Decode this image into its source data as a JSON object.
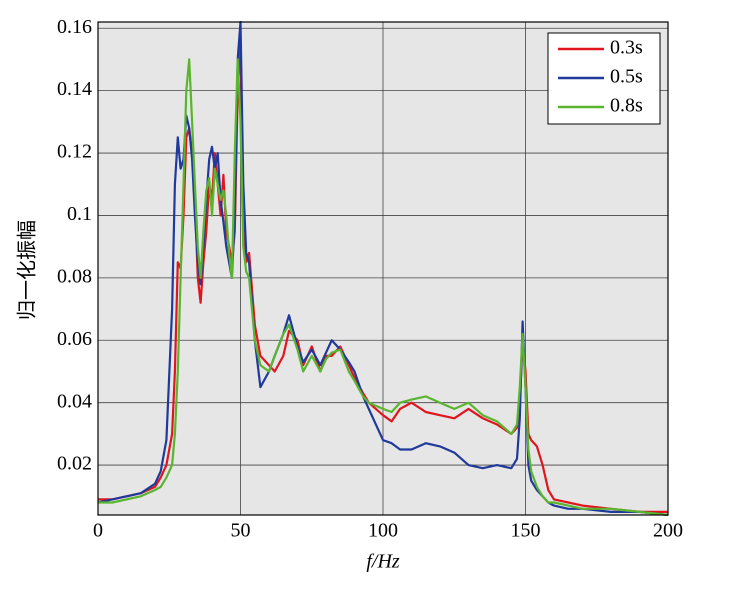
{
  "chart_data": {
    "type": "line",
    "xlabel": "f/Hz",
    "ylabel": "归一化振幅",
    "x": [
      0,
      5,
      10,
      15,
      20,
      22,
      24,
      26,
      27,
      28,
      29,
      30,
      31,
      32,
      33,
      34,
      35,
      36,
      37,
      38,
      39,
      40,
      41,
      42,
      43,
      44,
      45,
      46,
      47,
      48,
      49,
      50,
      51,
      52,
      53,
      55,
      57,
      60,
      62,
      65,
      67,
      70,
      72,
      75,
      78,
      80,
      82,
      85,
      88,
      90,
      93,
      95,
      100,
      103,
      106,
      110,
      115,
      120,
      125,
      130,
      135,
      140,
      145,
      147,
      148,
      149,
      150,
      151,
      152,
      154,
      156,
      158,
      160,
      165,
      170,
      180,
      190,
      200
    ],
    "series": [
      {
        "name": "0.3s",
        "color": "#e0161f",
        "values": [
          0.009,
          0.009,
          0.01,
          0.011,
          0.013,
          0.016,
          0.02,
          0.03,
          0.05,
          0.085,
          0.083,
          0.1,
          0.125,
          0.128,
          0.12,
          0.105,
          0.08,
          0.072,
          0.085,
          0.095,
          0.11,
          0.105,
          0.12,
          0.11,
          0.1,
          0.113,
          0.095,
          0.09,
          0.085,
          0.095,
          0.14,
          0.155,
          0.1,
          0.085,
          0.088,
          0.065,
          0.055,
          0.052,
          0.05,
          0.055,
          0.063,
          0.06,
          0.052,
          0.058,
          0.05,
          0.055,
          0.055,
          0.058,
          0.052,
          0.048,
          0.043,
          0.04,
          0.036,
          0.034,
          0.038,
          0.04,
          0.037,
          0.036,
          0.035,
          0.038,
          0.035,
          0.033,
          0.03,
          0.032,
          0.04,
          0.06,
          0.05,
          0.03,
          0.028,
          0.026,
          0.02,
          0.012,
          0.009,
          0.008,
          0.007,
          0.006,
          0.005,
          0.005
        ]
      },
      {
        "name": "0.5s",
        "color": "#1f3a9c",
        "values": [
          0.008,
          0.009,
          0.01,
          0.011,
          0.014,
          0.018,
          0.028,
          0.07,
          0.11,
          0.125,
          0.115,
          0.118,
          0.132,
          0.128,
          0.118,
          0.1,
          0.085,
          0.078,
          0.09,
          0.105,
          0.118,
          0.122,
          0.115,
          0.12,
          0.105,
          0.098,
          0.09,
          0.085,
          0.08,
          0.1,
          0.15,
          0.162,
          0.11,
          0.088,
          0.085,
          0.06,
          0.045,
          0.05,
          0.055,
          0.062,
          0.068,
          0.058,
          0.053,
          0.057,
          0.052,
          0.056,
          0.06,
          0.057,
          0.053,
          0.05,
          0.042,
          0.038,
          0.028,
          0.027,
          0.025,
          0.025,
          0.027,
          0.026,
          0.024,
          0.02,
          0.019,
          0.02,
          0.019,
          0.022,
          0.035,
          0.066,
          0.045,
          0.02,
          0.015,
          0.012,
          0.01,
          0.008,
          0.007,
          0.006,
          0.006,
          0.005,
          0.005,
          0.004
        ]
      },
      {
        "name": "0.8s",
        "color": "#5ab52e",
        "values": [
          0.008,
          0.008,
          0.009,
          0.01,
          0.012,
          0.013,
          0.016,
          0.02,
          0.03,
          0.05,
          0.08,
          0.11,
          0.14,
          0.15,
          0.13,
          0.11,
          0.09,
          0.08,
          0.095,
          0.108,
          0.112,
          0.1,
          0.115,
          0.11,
          0.105,
          0.108,
          0.1,
          0.088,
          0.08,
          0.12,
          0.15,
          0.13,
          0.09,
          0.082,
          0.08,
          0.06,
          0.052,
          0.05,
          0.055,
          0.062,
          0.065,
          0.057,
          0.05,
          0.055,
          0.05,
          0.054,
          0.056,
          0.057,
          0.05,
          0.047,
          0.042,
          0.04,
          0.038,
          0.037,
          0.04,
          0.041,
          0.042,
          0.04,
          0.038,
          0.04,
          0.036,
          0.034,
          0.03,
          0.033,
          0.045,
          0.062,
          0.045,
          0.025,
          0.018,
          0.013,
          0.01,
          0.008,
          0.008,
          0.007,
          0.006,
          0.006,
          0.005,
          0.004
        ]
      }
    ],
    "xlim": [
      0,
      200
    ],
    "xticks": [
      0,
      50,
      100,
      150,
      200
    ],
    "ylim": [
      0.004,
      0.162
    ],
    "yticks": [
      0.02,
      0.04,
      0.06,
      0.08,
      0.1,
      0.12,
      0.14,
      0.16
    ],
    "grid": true,
    "legend": "upper-right"
  }
}
